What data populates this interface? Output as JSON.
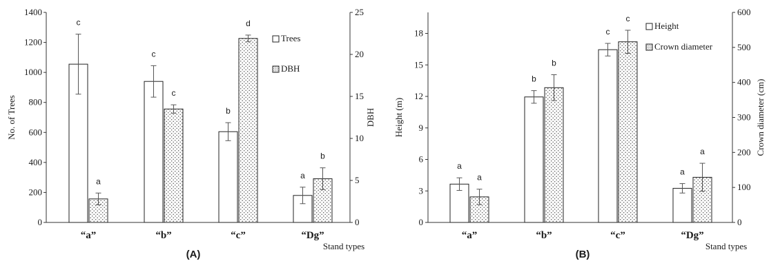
{
  "colors": {
    "bar_plain": "#ffffff",
    "bar_dotted": "#ffffff",
    "dot": "#555555",
    "axis": "#333333",
    "error": "#555555"
  },
  "chart_data": [
    {
      "type": "bar",
      "panel_label": "(A)",
      "categories": [
        "“a”",
        "“b”",
        "“c”",
        "“Dg”"
      ],
      "xlabel": "Stand types",
      "y_left": {
        "label": "No. of Trees",
        "lim": [
          0,
          1400
        ],
        "ticks": [
          0,
          200,
          400,
          600,
          800,
          1000,
          1200,
          1400
        ]
      },
      "y_right": {
        "label": "DBH",
        "lim": [
          0,
          25
        ],
        "ticks": [
          0,
          5,
          10,
          15,
          20,
          25
        ]
      },
      "legend": {
        "placement": "top-right",
        "entries": [
          "Trees",
          "DBH"
        ]
      },
      "series": [
        {
          "name": "Trees",
          "axis": "left",
          "pattern": "plain",
          "values": [
            1055,
            940,
            605,
            180
          ],
          "errors": [
            200,
            105,
            60,
            55
          ],
          "letters": [
            "c",
            "c",
            "b",
            "a"
          ]
        },
        {
          "name": "DBH",
          "axis": "right",
          "pattern": "dotted",
          "values": [
            2.8,
            13.5,
            21.9,
            5.2
          ],
          "errors": [
            0.7,
            0.5,
            0.4,
            1.3
          ],
          "letters": [
            "a",
            "c",
            "d",
            "b"
          ]
        }
      ]
    },
    {
      "type": "bar",
      "panel_label": "(B)",
      "categories": [
        "“a”",
        "“b”",
        "“c”",
        "“Dg”"
      ],
      "xlabel": "Stand types",
      "y_left": {
        "label": "Height (m)",
        "lim": [
          0,
          20
        ],
        "ticks": [
          0,
          3,
          6,
          9,
          12,
          15,
          18
        ]
      },
      "y_right": {
        "label": "Crown diameter (cm)",
        "lim": [
          0,
          600
        ],
        "ticks": [
          0,
          100,
          200,
          300,
          400,
          500,
          600
        ]
      },
      "legend": {
        "placement": "top-right",
        "entries": [
          "Height",
          "Crown diameter"
        ]
      },
      "series": [
        {
          "name": "Height",
          "axis": "left",
          "pattern": "plain",
          "values": [
            3.65,
            11.95,
            16.45,
            3.25
          ],
          "errors": [
            0.6,
            0.6,
            0.6,
            0.45
          ],
          "letters": [
            "a",
            "b",
            "c",
            "a"
          ]
        },
        {
          "name": "Crown diameter",
          "axis": "right",
          "pattern": "dotted",
          "values": [
            73,
            385,
            516,
            129
          ],
          "errors": [
            22,
            37,
            33,
            40
          ],
          "letters": [
            "a",
            "b",
            "c",
            "a"
          ]
        }
      ]
    }
  ]
}
